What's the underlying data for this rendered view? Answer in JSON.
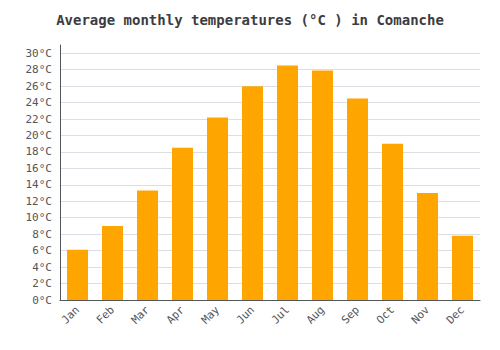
{
  "chart_data": {
    "type": "bar",
    "title": "Average monthly temperatures (°C ) in Comanche",
    "categories": [
      "Jan",
      "Feb",
      "Mar",
      "Apr",
      "May",
      "Jun",
      "Jul",
      "Aug",
      "Sep",
      "Oct",
      "Nov",
      "Dec"
    ],
    "values": [
      6.1,
      9.0,
      13.3,
      18.5,
      22.2,
      26.0,
      28.5,
      27.9,
      24.5,
      19.0,
      13.0,
      7.8
    ],
    "color": "#FFA500",
    "ylim": [
      0,
      31
    ],
    "yticks": [
      {
        "value": 0,
        "label": "0°C"
      },
      {
        "value": 2,
        "label": "2°C"
      },
      {
        "value": 4,
        "label": "4°C"
      },
      {
        "value": 6,
        "label": "6°C"
      },
      {
        "value": 8,
        "label": "8°C"
      },
      {
        "value": 10,
        "label": "10°C"
      },
      {
        "value": 12,
        "label": "12°C"
      },
      {
        "value": 14,
        "label": "14°C"
      },
      {
        "value": 16,
        "label": "16°C"
      },
      {
        "value": 18,
        "label": "18°C"
      },
      {
        "value": 20,
        "label": "20°C"
      },
      {
        "value": 22,
        "label": "22°C"
      },
      {
        "value": 24,
        "label": "24°C"
      },
      {
        "value": 26,
        "label": "26°C"
      },
      {
        "value": 28,
        "label": "28°C"
      },
      {
        "value": 30,
        "label": "30°C"
      }
    ],
    "grid": true
  }
}
